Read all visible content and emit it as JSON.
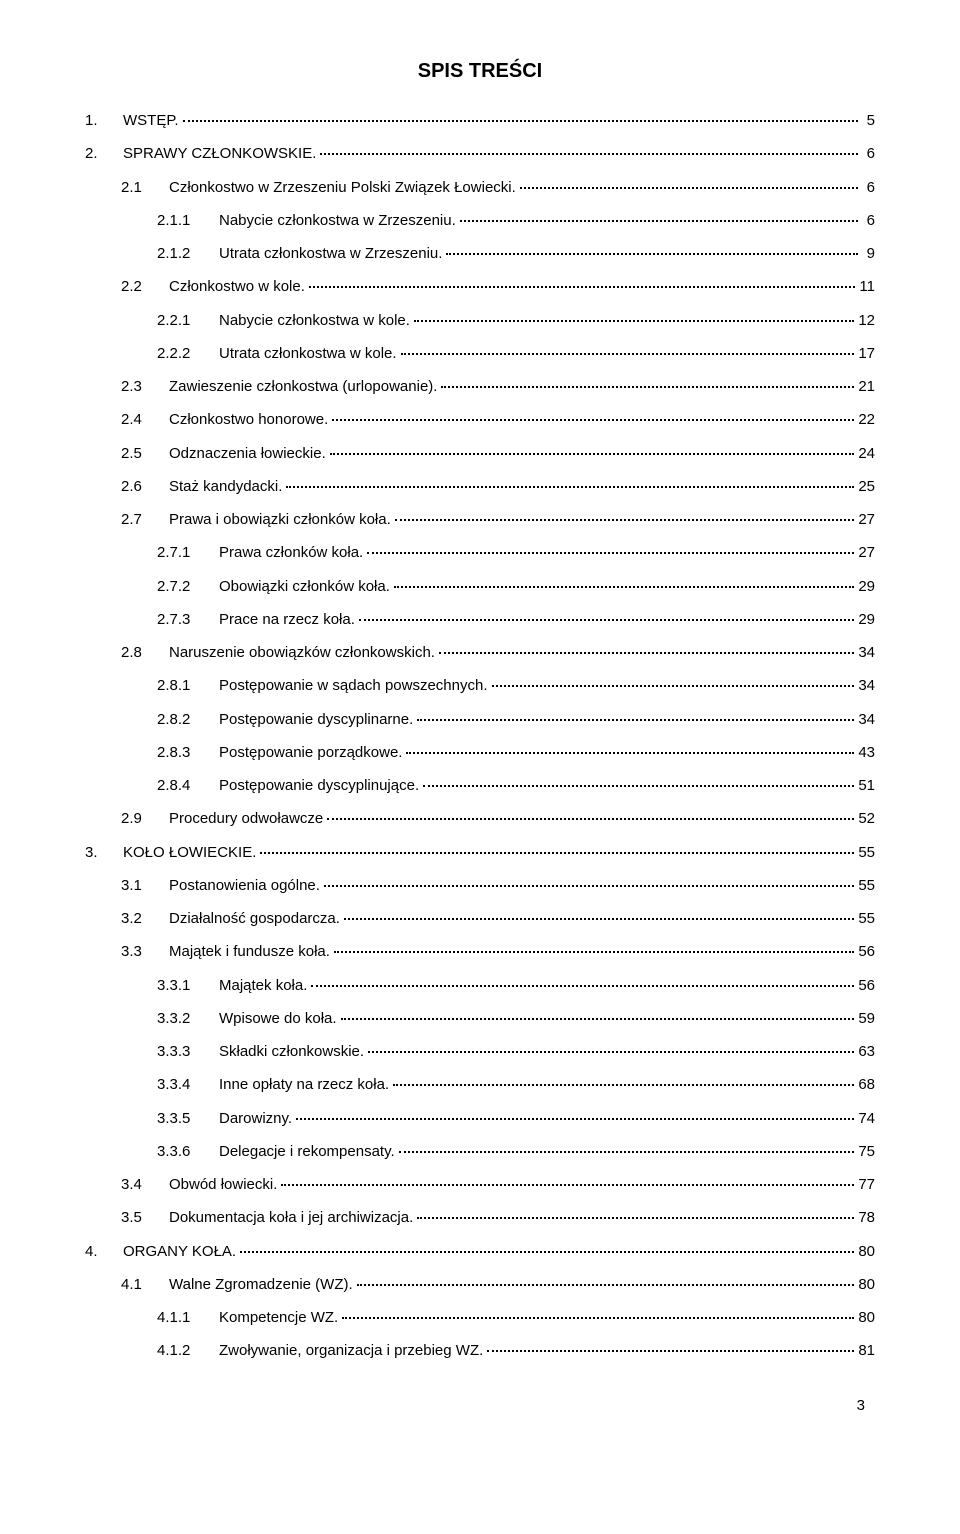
{
  "title": "SPIS TREŚCI",
  "page_number": "3",
  "entries": [
    {
      "num": "1.",
      "label": "WSTĘP.",
      "page": " 5",
      "indent": 0
    },
    {
      "num": "2.",
      "label": "SPRAWY CZŁONKOWSKIE.",
      "page": " 6",
      "indent": 0
    },
    {
      "num": "2.1",
      "label": "Członkostwo w Zrzeszeniu Polski Związek Łowiecki.",
      "page": " 6",
      "indent": 1
    },
    {
      "num": "2.1.1",
      "label": "Nabycie członkostwa w Zrzeszeniu.",
      "page": " 6",
      "indent": 2
    },
    {
      "num": "2.1.2",
      "label": "Utrata członkostwa w Zrzeszeniu.",
      "page": " 9",
      "indent": 2
    },
    {
      "num": "2.2",
      "label": "Członkostwo w kole.",
      "page": "11",
      "indent": 1
    },
    {
      "num": "2.2.1",
      "label": "Nabycie członkostwa w kole.",
      "page": "12",
      "indent": 2
    },
    {
      "num": "2.2.2",
      "label": "Utrata członkostwa w kole.",
      "page": "17",
      "indent": 2
    },
    {
      "num": "2.3",
      "label": "Zawieszenie członkostwa (urlopowanie).",
      "page": "21",
      "indent": 1
    },
    {
      "num": "2.4",
      "label": "Członkostwo honorowe.",
      "page": "22",
      "indent": 1
    },
    {
      "num": "2.5",
      "label": "Odznaczenia łowieckie.",
      "page": "24",
      "indent": 1
    },
    {
      "num": "2.6",
      "label": "Staż kandydacki.",
      "page": "25",
      "indent": 1
    },
    {
      "num": "2.7",
      "label": "Prawa i obowiązki członków koła.",
      "page": "27",
      "indent": 1
    },
    {
      "num": "2.7.1",
      "label": "Prawa członków koła.",
      "page": "27",
      "indent": 2
    },
    {
      "num": "2.7.2",
      "label": "Obowiązki członków koła.",
      "page": "29",
      "indent": 2
    },
    {
      "num": "2.7.3",
      "label": "Prace na rzecz koła.",
      "page": "29",
      "indent": 2
    },
    {
      "num": "2.8",
      "label": "Naruszenie obowiązków członkowskich.",
      "page": "34",
      "indent": 1
    },
    {
      "num": "2.8.1",
      "label": "Postępowanie w sądach powszechnych.",
      "page": "34",
      "indent": 2
    },
    {
      "num": "2.8.2",
      "label": "Postępowanie dyscyplinarne.",
      "page": "34",
      "indent": 2
    },
    {
      "num": "2.8.3",
      "label": "Postępowanie porządkowe.",
      "page": "43",
      "indent": 2
    },
    {
      "num": "2.8.4",
      "label": "Postępowanie dyscyplinujące.",
      "page": "51",
      "indent": 2
    },
    {
      "num": "2.9",
      "label": "Procedury odwoławcze",
      "page": "52",
      "indent": 1
    },
    {
      "num": "3.",
      "label": "KOŁO ŁOWIECKIE.",
      "page": "55",
      "indent": 0
    },
    {
      "num": "3.1",
      "label": "Postanowienia ogólne.",
      "page": "55",
      "indent": 1
    },
    {
      "num": "3.2",
      "label": "Działalność gospodarcza.",
      "page": "55",
      "indent": 1
    },
    {
      "num": "3.3",
      "label": "Majątek i fundusze koła.",
      "page": "56",
      "indent": 1
    },
    {
      "num": "3.3.1",
      "label": "Majątek koła.",
      "page": "56",
      "indent": 2
    },
    {
      "num": "3.3.2",
      "label": "Wpisowe do koła.",
      "page": "59",
      "indent": 2
    },
    {
      "num": "3.3.3",
      "label": "Składki członkowskie.",
      "page": "63",
      "indent": 2
    },
    {
      "num": "3.3.4",
      "label": "Inne opłaty na rzecz koła.",
      "page": "68",
      "indent": 2
    },
    {
      "num": "3.3.5",
      "label": "Darowizny.",
      "page": "74",
      "indent": 2
    },
    {
      "num": "3.3.6",
      "label": "Delegacje i rekompensaty.",
      "page": "75",
      "indent": 2
    },
    {
      "num": "3.4",
      "label": "Obwód łowiecki.",
      "page": "77",
      "indent": 1
    },
    {
      "num": "3.5",
      "label": "Dokumentacja koła i jej archiwizacja.",
      "page": "78",
      "indent": 1
    },
    {
      "num": "4.",
      "label": "ORGANY KOŁA.",
      "page": "80",
      "indent": 0
    },
    {
      "num": "4.1",
      "label": "Walne Zgromadzenie (WZ).",
      "page": "80",
      "indent": 1
    },
    {
      "num": "4.1.1",
      "label": "Kompetencje WZ.",
      "page": "80",
      "indent": 2
    },
    {
      "num": "4.1.2",
      "label": "Zwoływanie, organizacja i przebieg WZ.",
      "page": "81",
      "indent": 2
    }
  ]
}
